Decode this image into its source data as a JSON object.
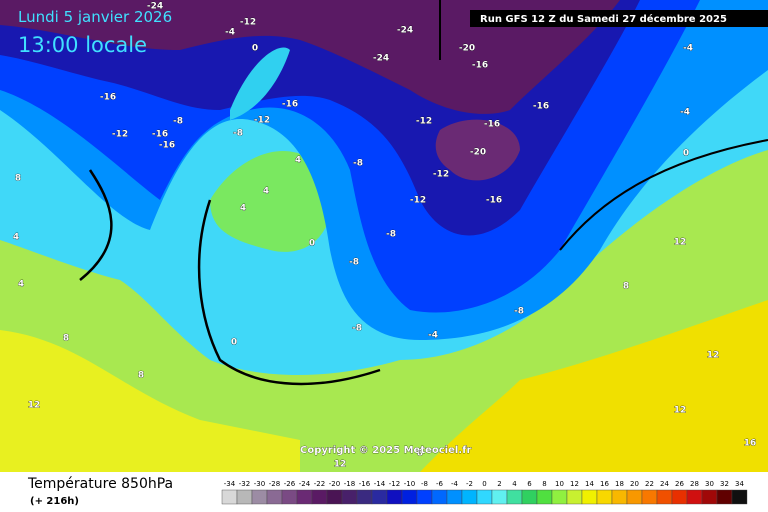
{
  "header": {
    "date": "Lundi 5 janvier 2026",
    "time": "13:00 locale",
    "run": "Run GFS 12 Z du Samedi 27 décembre 2025"
  },
  "copyright": "Copyright © 2025 Meteociel.fr",
  "footer": {
    "title": "Température 850hPa",
    "lead": "(+ 216h)"
  },
  "legend": {
    "ticks": [
      -34,
      -32,
      -30,
      -28,
      -26,
      -24,
      -22,
      -20,
      -18,
      -16,
      -14,
      -12,
      -10,
      -8,
      -6,
      -4,
      -2,
      0,
      2,
      4,
      6,
      8,
      10,
      12,
      14,
      16,
      18,
      20,
      22,
      24,
      26,
      28,
      30,
      32,
      34
    ],
    "colors": [
      "#d8d8d8",
      "#b8b8b8",
      "#9c8ca4",
      "#8a6a94",
      "#7a4a84",
      "#6a2a74",
      "#5a1a64",
      "#4a1454",
      "#48206a",
      "#3a2a80",
      "#2a2aa0",
      "#1010c0",
      "#0020e0",
      "#0040ff",
      "#0068ff",
      "#0090ff",
      "#00b4ff",
      "#30d8ff",
      "#60f0f0",
      "#40e0a0",
      "#30d060",
      "#50e040",
      "#90f040",
      "#c8f030",
      "#f0f000",
      "#f8d800",
      "#f8b800",
      "#f89800",
      "#f87800",
      "#f05000",
      "#e83000",
      "#d01010",
      "#a00808",
      "#600000",
      "#101010"
    ]
  },
  "map_labels": [
    -24,
    -12,
    -24,
    -20,
    -16,
    -24,
    -4,
    0,
    -4,
    -16,
    -8,
    -12,
    -16,
    -16,
    -16,
    -12,
    -8,
    -12,
    -16,
    -16,
    -4,
    -20,
    0,
    -8,
    -12,
    -12,
    -16,
    4,
    4,
    4,
    0,
    8,
    4,
    4,
    -8,
    -8,
    12,
    8,
    0,
    -8,
    -4,
    -8,
    8,
    12,
    8,
    12,
    12,
    16,
    12,
    8
  ]
}
